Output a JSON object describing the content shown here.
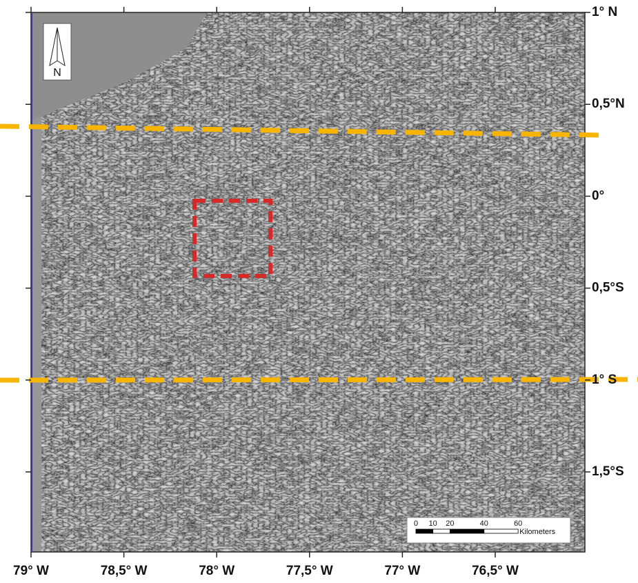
{
  "map": {
    "north_label": "N",
    "lon_ticks": [
      "79° W",
      "78,5° W",
      "78° W",
      "77,5° W",
      "77° W",
      "76,5° W"
    ],
    "lat_ticks": [
      "1° N",
      "0,5°N",
      "0°",
      "0,5°S",
      "1° S",
      "1,5°S"
    ],
    "scale_bar": {
      "marks": [
        0,
        10,
        20,
        40,
        60
      ],
      "unit": "Kilometers"
    }
  }
}
